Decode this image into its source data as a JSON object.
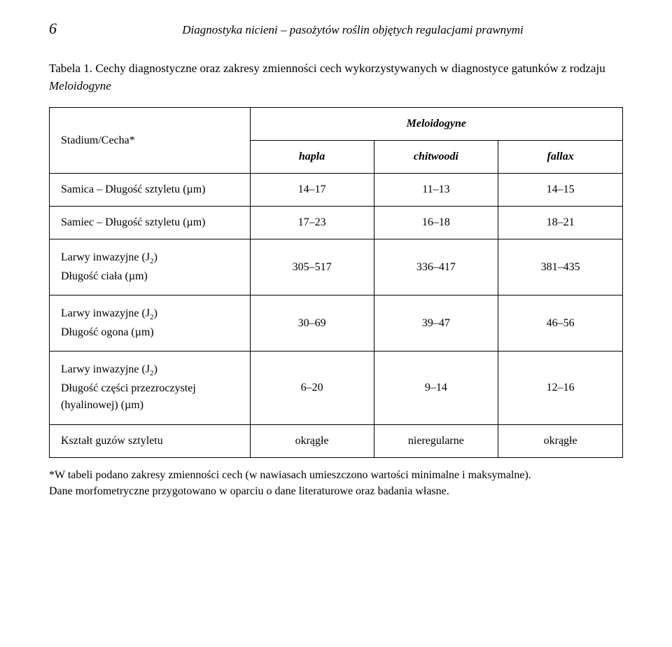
{
  "page_number": "6",
  "running_header": "Diagnostyka nicieni – pasożytów roślin objętych regulacjami prawnymi",
  "table_label": "Tabela 1.",
  "table_caption_pre": "Cechy diagnostyczne oraz zakresy zmienności cech wykorzystywanych w diagnostyce gatunków z rodzaju ",
  "table_caption_genus": "Meloidogyne",
  "header_row_label": "Stadium/Cecha*",
  "header_group": "Meloidogyne",
  "species": {
    "a": "hapla",
    "b": "chitwoodi",
    "c": "fallax"
  },
  "rows": {
    "r1": {
      "label": "Samica – Długość sztyletu (µm)",
      "a": "14–17",
      "b": "11–13",
      "c": "14–15"
    },
    "r2": {
      "label": "Samiec – Długość sztyletu (µm)",
      "a": "17–23",
      "b": "16–18",
      "c": "18–21"
    },
    "r3": {
      "label_l1": "Larwy inwazyjne (J",
      "label_sub": "2",
      "label_l1_end": ")",
      "label_l2": "Długość ciała (µm)",
      "a": "305–517",
      "b": "336–417",
      "c": "381–435"
    },
    "r4": {
      "label_l1": "Larwy inwazyjne (J",
      "label_sub": "2",
      "label_l1_end": ")",
      "label_l2": "Długość ogona (µm)",
      "a": "30–69",
      "b": "39–47",
      "c": "46–56"
    },
    "r5": {
      "label_l1": "Larwy inwazyjne (J",
      "label_sub": "2",
      "label_l1_end": ")",
      "label_l2": "Długość części przezroczystej (hyalinowej) (µm)",
      "a": "6–20",
      "b": "9–14",
      "c": "12–16"
    },
    "r6": {
      "label": "Kształt guzów sztyletu",
      "a": "okrągłe",
      "b": "nieregularne",
      "c": "okrągłe"
    }
  },
  "footnote_l1": "*W tabeli podano zakresy zmienności cech (w nawiasach umieszczono wartości minimalne i maksymalne).",
  "footnote_l2": "Dane morfometryczne przygotowano w oparciu o dane literaturowe oraz badania własne."
}
